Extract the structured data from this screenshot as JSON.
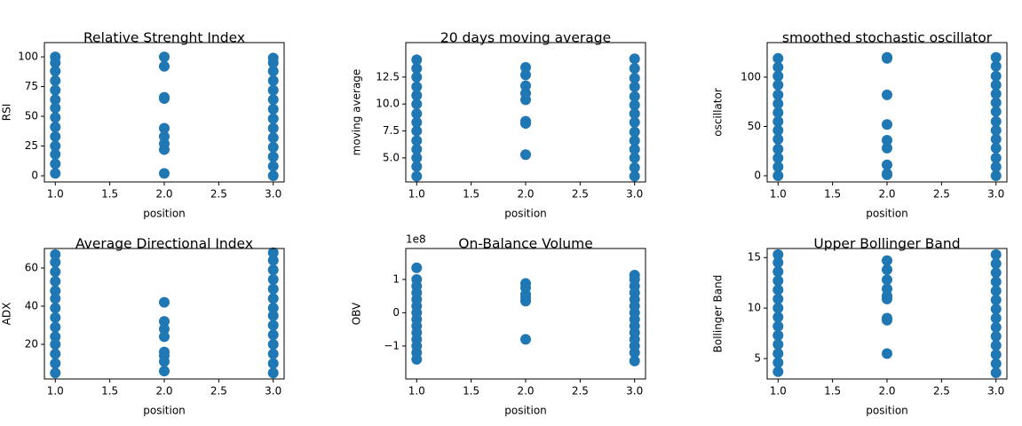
{
  "chart_data": [
    {
      "type": "scatter",
      "title": "Relative Strenght Index",
      "x_label": "position",
      "y_label": "RSI",
      "color": "#1f77b4",
      "x": [
        1,
        1,
        1,
        1,
        1,
        1,
        1,
        1,
        1,
        1,
        1,
        1,
        1,
        1,
        2,
        2,
        2,
        2,
        2,
        2,
        2,
        2,
        2,
        3,
        3,
        3,
        3,
        3,
        3,
        3,
        3,
        3,
        3,
        3,
        3,
        3,
        3
      ],
      "y": [
        2,
        10,
        18,
        25,
        33,
        41,
        49,
        57,
        64,
        72,
        80,
        88,
        95,
        100,
        100,
        92,
        66,
        65,
        40,
        33,
        27,
        22,
        2,
        0,
        8,
        16,
        24,
        32,
        40,
        48,
        56,
        64,
        72,
        80,
        88,
        95,
        99
      ],
      "xlim": [
        0.9,
        3.1
      ],
      "ylim": [
        -5.2,
        112
      ],
      "xticks": [
        {
          "value": 1,
          "label": "1.0"
        },
        {
          "value": 1.5,
          "label": "1.5"
        },
        {
          "value": 2,
          "label": "2.0"
        },
        {
          "value": 2.5,
          "label": "2.5"
        },
        {
          "value": 3,
          "label": "3.0"
        }
      ],
      "yticks": [
        0,
        25,
        50,
        75,
        100
      ]
    },
    {
      "type": "scatter",
      "title": "20 days moving average",
      "x_label": "position",
      "y_label": "moving average",
      "color": "#1f77b4",
      "x": [
        1,
        1,
        1,
        1,
        1,
        1,
        1,
        1,
        1,
        1,
        1,
        1,
        1,
        1,
        2,
        2,
        2,
        2,
        2,
        2,
        2,
        2,
        3,
        3,
        3,
        3,
        3,
        3,
        3,
        3,
        3,
        3,
        3,
        3,
        3,
        3
      ],
      "y": [
        3.3,
        4.2,
        5.0,
        5.8,
        6.6,
        7.5,
        8.3,
        9.1,
        10.0,
        10.8,
        11.6,
        12.5,
        13.3,
        14.1,
        13.4,
        12.7,
        11.7,
        11.0,
        10.4,
        8.4,
        8.2,
        5.3,
        3.3,
        4.1,
        5.0,
        5.8,
        6.6,
        7.4,
        8.3,
        9.1,
        9.9,
        10.7,
        11.6,
        12.4,
        13.3,
        14.2
      ],
      "xlim": [
        0.9,
        3.1
      ],
      "ylim": [
        2.77,
        15.7
      ],
      "xticks": [
        {
          "value": 1,
          "label": "1.0"
        },
        {
          "value": 1.5,
          "label": "1.5"
        },
        {
          "value": 2,
          "label": "2.0"
        },
        {
          "value": 2.5,
          "label": "2.5"
        },
        {
          "value": 3,
          "label": "3.0"
        }
      ],
      "yticks": [
        {
          "value": 5,
          "label": "5.0"
        },
        {
          "value": 7.5,
          "label": "7.5"
        },
        {
          "value": 10,
          "label": "10.0"
        },
        12.5
      ]
    },
    {
      "type": "scatter",
      "title": "smoothed stochastic oscillator",
      "x_label": "position",
      "y_label": "oscillator",
      "color": "#1f77b4",
      "x": [
        1,
        1,
        1,
        1,
        1,
        1,
        1,
        1,
        1,
        1,
        1,
        1,
        1,
        1,
        2,
        2,
        2,
        2,
        2,
        2,
        2,
        2,
        2,
        3,
        3,
        3,
        3,
        3,
        3,
        3,
        3,
        3,
        3,
        3,
        3,
        3,
        3
      ],
      "y": [
        0,
        9,
        18,
        27,
        37,
        46,
        55,
        64,
        73,
        82,
        92,
        101,
        110,
        119,
        120,
        119,
        82,
        52,
        36,
        28,
        11,
        2,
        1,
        0,
        9,
        18,
        28,
        37,
        46,
        55,
        65,
        74,
        83,
        92,
        101,
        111,
        120
      ],
      "xlim": [
        0.9,
        3.1
      ],
      "ylim": [
        -6.3,
        135
      ],
      "xticks": [
        {
          "value": 1,
          "label": "1.0"
        },
        {
          "value": 1.5,
          "label": "1.5"
        },
        {
          "value": 2,
          "label": "2.0"
        },
        {
          "value": 2.5,
          "label": "2.5"
        },
        {
          "value": 3,
          "label": "3.0"
        }
      ],
      "yticks": [
        0,
        50,
        100
      ]
    },
    {
      "type": "scatter",
      "title": "Average Directional Index",
      "x_label": "position",
      "y_label": "ADX",
      "color": "#1f77b4",
      "x": [
        1,
        1,
        1,
        1,
        1,
        1,
        1,
        1,
        1,
        1,
        1,
        1,
        1,
        1,
        2,
        2,
        2,
        2,
        2,
        2,
        2,
        2,
        3,
        3,
        3,
        3,
        3,
        3,
        3,
        3,
        3,
        3,
        3,
        3,
        3,
        3
      ],
      "y": [
        5,
        10,
        15,
        20,
        24,
        29,
        34,
        39,
        44,
        48,
        53,
        58,
        63,
        67,
        42,
        32,
        28,
        24,
        16,
        14,
        11,
        6,
        5,
        10,
        15,
        20,
        25,
        30,
        35,
        39,
        44,
        49,
        54,
        59,
        64,
        68
      ],
      "xlim": [
        0.9,
        3.1
      ],
      "ylim": [
        1.86,
        70.2
      ],
      "xticks": [
        {
          "value": 1,
          "label": "1.0"
        },
        {
          "value": 1.5,
          "label": "1.5"
        },
        {
          "value": 2,
          "label": "2.0"
        },
        {
          "value": 2.5,
          "label": "2.5"
        },
        {
          "value": 3,
          "label": "3.0"
        }
      ],
      "yticks": [
        20,
        40,
        60
      ]
    },
    {
      "type": "scatter",
      "title": "On-Balance Volume",
      "x_label": "position",
      "y_label": "OBV",
      "y_offset_label": "1e8",
      "color": "#1f77b4",
      "x": [
        1,
        1,
        1,
        1,
        1,
        1,
        1,
        1,
        1,
        1,
        1,
        1,
        1,
        1,
        2,
        2,
        2,
        2,
        2,
        2,
        3,
        3,
        3,
        3,
        3,
        3,
        3,
        3,
        3,
        3,
        3,
        3,
        3,
        3
      ],
      "y": [
        -1.4,
        -1.2,
        -1.0,
        -0.8,
        -0.6,
        -0.4,
        -0.2,
        0,
        0.2,
        0.4,
        0.6,
        0.8,
        1.0,
        1.35,
        0.88,
        0.75,
        0.55,
        0.45,
        0.35,
        -0.8,
        -1.45,
        -1.2,
        -1.0,
        -0.8,
        -0.6,
        -0.4,
        -0.2,
        0,
        0.2,
        0.4,
        0.6,
        0.8,
        1.0,
        1.13
      ],
      "xlim": [
        0.9,
        3.1
      ],
      "ylim": [
        -1.99,
        1.93
      ],
      "xticks": [
        {
          "value": 1,
          "label": "1.0"
        },
        {
          "value": 1.5,
          "label": "1.5"
        },
        {
          "value": 2,
          "label": "2.0"
        },
        {
          "value": 2.5,
          "label": "2.5"
        },
        {
          "value": 3,
          "label": "3.0"
        }
      ],
      "yticks": [
        {
          "value": -1,
          "label": "−1"
        },
        0,
        1
      ]
    },
    {
      "type": "scatter",
      "title": "Upper Bollinger Band",
      "x_label": "position",
      "y_label": "Bollinger Band",
      "color": "#1f77b4",
      "x": [
        1,
        1,
        1,
        1,
        1,
        1,
        1,
        1,
        1,
        1,
        1,
        1,
        1,
        1,
        2,
        2,
        2,
        2,
        2,
        2,
        2,
        2,
        2,
        3,
        3,
        3,
        3,
        3,
        3,
        3,
        3,
        3,
        3,
        3,
        3,
        3,
        3
      ],
      "y": [
        3.7,
        4.6,
        5.5,
        6.4,
        7.3,
        8.2,
        9.1,
        10.0,
        10.9,
        11.8,
        12.7,
        13.6,
        14.5,
        15.3,
        14.7,
        13.8,
        12.8,
        11.9,
        11.2,
        10.9,
        9.0,
        8.8,
        5.5,
        3.6,
        4.5,
        5.4,
        6.3,
        7.2,
        8.1,
        9.0,
        9.9,
        10.8,
        11.7,
        12.6,
        13.5,
        14.4,
        15.3
      ],
      "xlim": [
        0.9,
        3.1
      ],
      "ylim": [
        2.98,
        15.9
      ],
      "xticks": [
        {
          "value": 1,
          "label": "1.0"
        },
        {
          "value": 1.5,
          "label": "1.5"
        },
        {
          "value": 2,
          "label": "2.0"
        },
        {
          "value": 2.5,
          "label": "2.5"
        },
        {
          "value": 3,
          "label": "3.0"
        }
      ],
      "yticks": [
        5,
        10,
        15
      ]
    }
  ]
}
